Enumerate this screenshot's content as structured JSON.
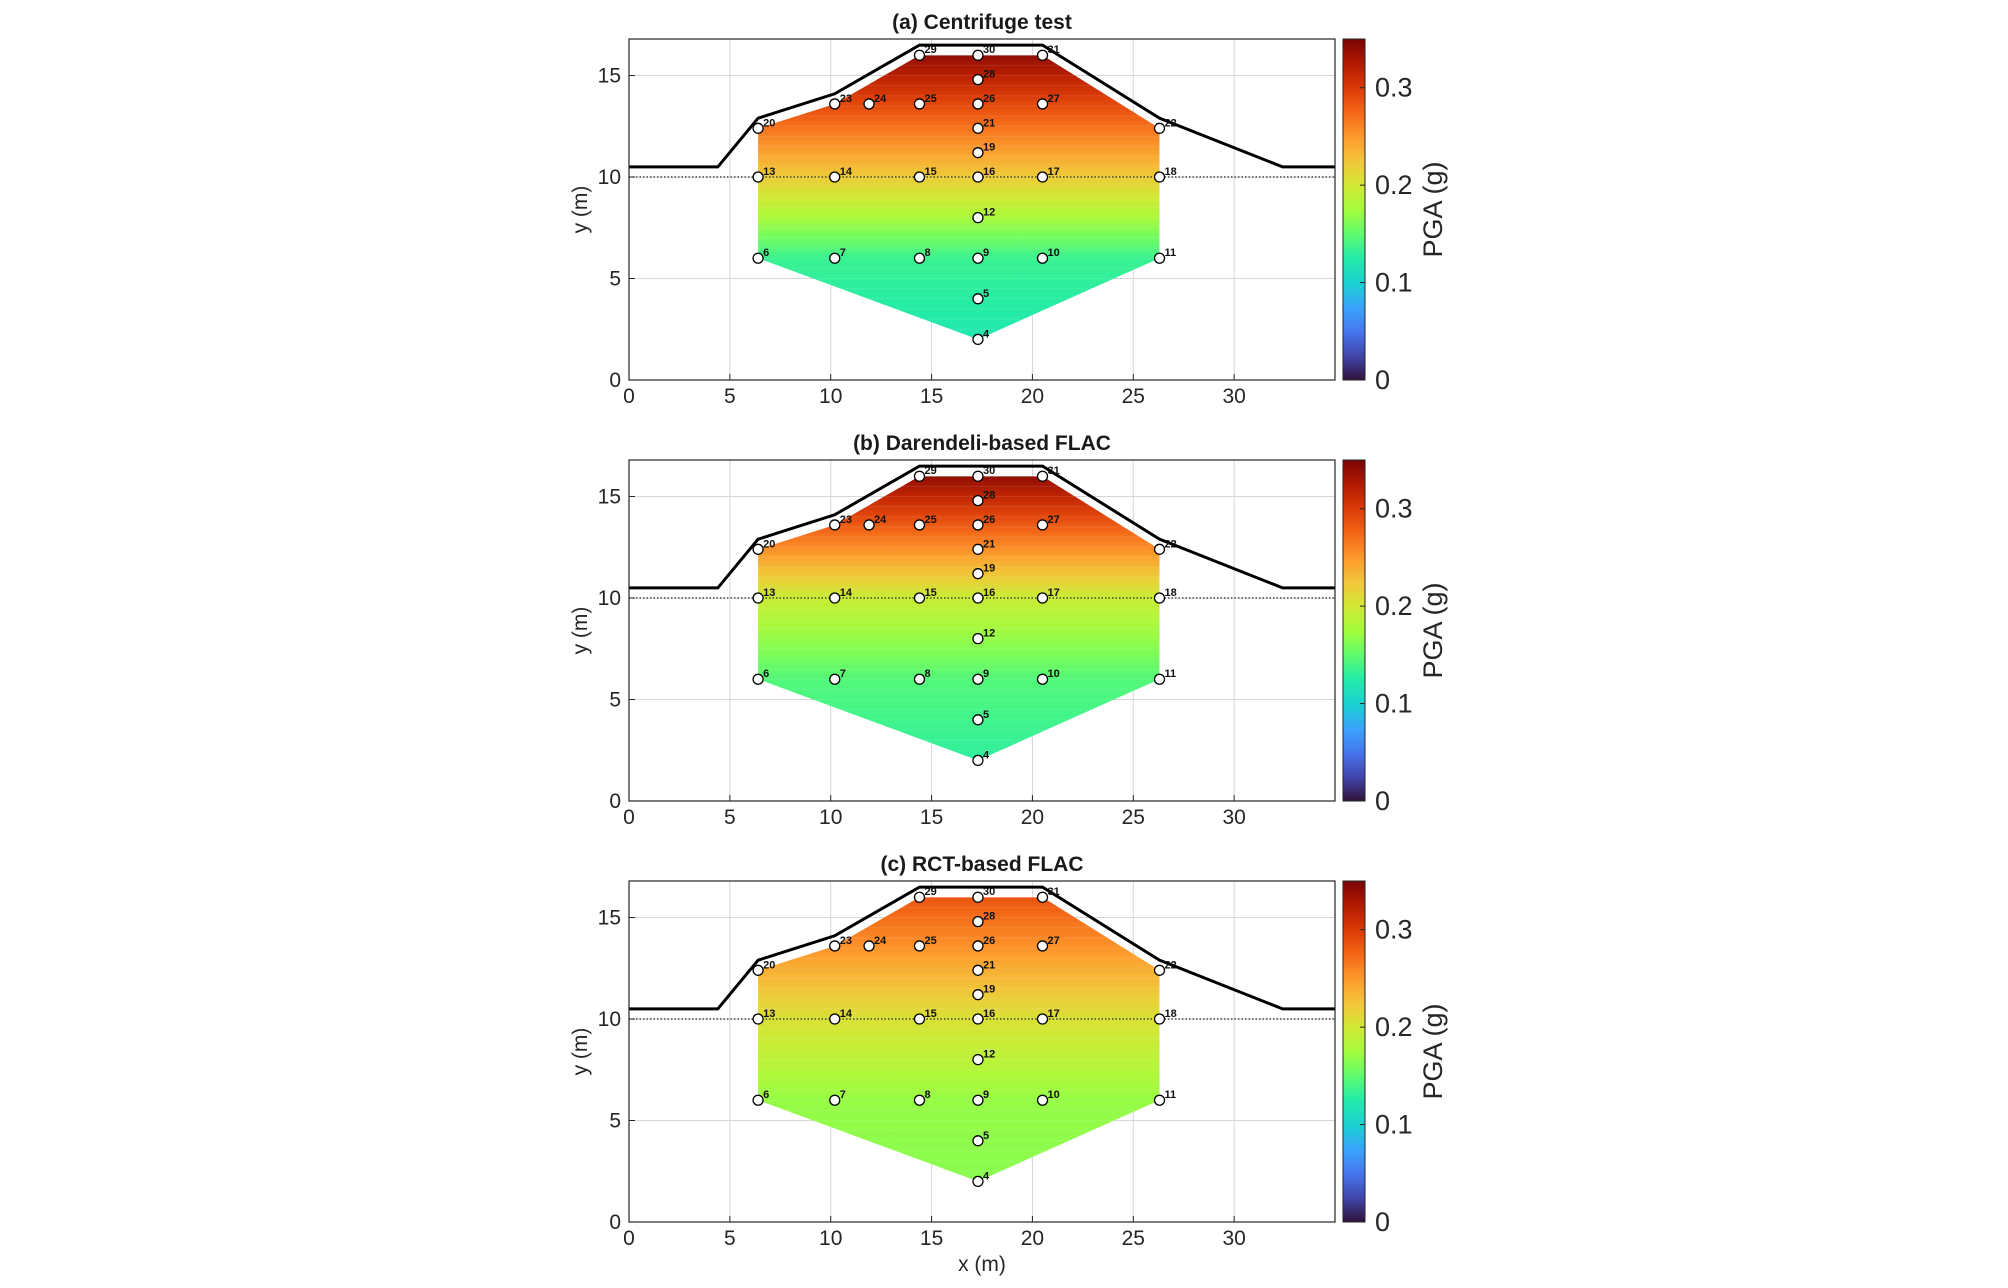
{
  "chart_data": [
    {
      "type": "heatmap",
      "title": "(a) Centrifuge test",
      "xlabel": "",
      "ylabel": "y (m)",
      "xlim": [
        0,
        35
      ],
      "ylim": [
        0,
        16.8
      ],
      "x_ticks": [
        0,
        5,
        10,
        15,
        20,
        25,
        30
      ],
      "y_ticks": [
        0,
        5,
        10,
        15
      ],
      "grid": true,
      "colorbar": {
        "label": "PGA (g)",
        "ticks": [
          0,
          0.1,
          0.2,
          0.3
        ],
        "range": [
          0,
          0.35
        ],
        "colormap": "turbo"
      },
      "pga_field": {
        "top_value": 0.34,
        "water_table_value": 0.22,
        "bottom_value": 0.135,
        "base_value": 0.12
      },
      "water_table_y": 10,
      "sensors": [
        {
          "id": "4",
          "x": 17.3,
          "y": 2.0
        },
        {
          "id": "5",
          "x": 17.3,
          "y": 4.0
        },
        {
          "id": "6",
          "x": 6.4,
          "y": 6.0
        },
        {
          "id": "7",
          "x": 10.2,
          "y": 6.0
        },
        {
          "id": "8",
          "x": 14.4,
          "y": 6.0
        },
        {
          "id": "9",
          "x": 17.3,
          "y": 6.0
        },
        {
          "id": "10",
          "x": 20.5,
          "y": 6.0
        },
        {
          "id": "11",
          "x": 26.3,
          "y": 6.0
        },
        {
          "id": "12",
          "x": 17.3,
          "y": 8.0
        },
        {
          "id": "13",
          "x": 6.4,
          "y": 10.0
        },
        {
          "id": "14",
          "x": 10.2,
          "y": 10.0
        },
        {
          "id": "15",
          "x": 14.4,
          "y": 10.0
        },
        {
          "id": "16",
          "x": 17.3,
          "y": 10.0
        },
        {
          "id": "17",
          "x": 20.5,
          "y": 10.0
        },
        {
          "id": "18",
          "x": 26.3,
          "y": 10.0
        },
        {
          "id": "19",
          "x": 17.3,
          "y": 11.2
        },
        {
          "id": "20",
          "x": 6.4,
          "y": 12.4
        },
        {
          "id": "21",
          "x": 17.3,
          "y": 12.4
        },
        {
          "id": "22",
          "x": 26.3,
          "y": 12.4
        },
        {
          "id": "23",
          "x": 10.2,
          "y": 13.6
        },
        {
          "id": "24",
          "x": 11.9,
          "y": 13.6
        },
        {
          "id": "25",
          "x": 14.4,
          "y": 13.6
        },
        {
          "id": "26",
          "x": 17.3,
          "y": 13.6
        },
        {
          "id": "27",
          "x": 20.5,
          "y": 13.6
        },
        {
          "id": "28",
          "x": 17.3,
          "y": 14.8
        },
        {
          "id": "29",
          "x": 14.4,
          "y": 16.0
        },
        {
          "id": "30",
          "x": 17.3,
          "y": 16.0
        },
        {
          "id": "31",
          "x": 20.5,
          "y": 16.0
        }
      ]
    },
    {
      "type": "heatmap",
      "title": "(b) Darendeli-based FLAC",
      "xlabel": "",
      "ylabel": "y (m)",
      "xlim": [
        0,
        35
      ],
      "ylim": [
        0,
        16.8
      ],
      "x_ticks": [
        0,
        5,
        10,
        15,
        20,
        25,
        30
      ],
      "y_ticks": [
        0,
        5,
        10,
        15
      ],
      "grid": true,
      "colorbar": {
        "label": "PGA (g)",
        "ticks": [
          0,
          0.1,
          0.2,
          0.3
        ],
        "range": [
          0,
          0.35
        ],
        "colormap": "turbo"
      },
      "pga_field": {
        "top_value": 0.34,
        "water_table_value": 0.195,
        "bottom_value": 0.145,
        "base_value": 0.13
      },
      "water_table_y": 10,
      "sensors": [
        {
          "id": "4",
          "x": 17.3,
          "y": 2.0
        },
        {
          "id": "5",
          "x": 17.3,
          "y": 4.0
        },
        {
          "id": "6",
          "x": 6.4,
          "y": 6.0
        },
        {
          "id": "7",
          "x": 10.2,
          "y": 6.0
        },
        {
          "id": "8",
          "x": 14.4,
          "y": 6.0
        },
        {
          "id": "9",
          "x": 17.3,
          "y": 6.0
        },
        {
          "id": "10",
          "x": 20.5,
          "y": 6.0
        },
        {
          "id": "11",
          "x": 26.3,
          "y": 6.0
        },
        {
          "id": "12",
          "x": 17.3,
          "y": 8.0
        },
        {
          "id": "13",
          "x": 6.4,
          "y": 10.0
        },
        {
          "id": "14",
          "x": 10.2,
          "y": 10.0
        },
        {
          "id": "15",
          "x": 14.4,
          "y": 10.0
        },
        {
          "id": "16",
          "x": 17.3,
          "y": 10.0
        },
        {
          "id": "17",
          "x": 20.5,
          "y": 10.0
        },
        {
          "id": "18",
          "x": 26.3,
          "y": 10.0
        },
        {
          "id": "19",
          "x": 17.3,
          "y": 11.2
        },
        {
          "id": "20",
          "x": 6.4,
          "y": 12.4
        },
        {
          "id": "21",
          "x": 17.3,
          "y": 12.4
        },
        {
          "id": "22",
          "x": 26.3,
          "y": 12.4
        },
        {
          "id": "23",
          "x": 10.2,
          "y": 13.6
        },
        {
          "id": "24",
          "x": 11.9,
          "y": 13.6
        },
        {
          "id": "25",
          "x": 14.4,
          "y": 13.6
        },
        {
          "id": "26",
          "x": 17.3,
          "y": 13.6
        },
        {
          "id": "27",
          "x": 20.5,
          "y": 13.6
        },
        {
          "id": "28",
          "x": 17.3,
          "y": 14.8
        },
        {
          "id": "29",
          "x": 14.4,
          "y": 16.0
        },
        {
          "id": "30",
          "x": 17.3,
          "y": 16.0
        },
        {
          "id": "31",
          "x": 20.5,
          "y": 16.0
        }
      ]
    },
    {
      "type": "heatmap",
      "title": "(c) RCT-based FLAC",
      "xlabel": "x (m)",
      "ylabel": "y (m)",
      "xlim": [
        0,
        35
      ],
      "ylim": [
        0,
        16.8
      ],
      "x_ticks": [
        0,
        5,
        10,
        15,
        20,
        25,
        30
      ],
      "y_ticks": [
        0,
        5,
        10,
        15
      ],
      "grid": true,
      "colorbar": {
        "label": "PGA (g)",
        "ticks": [
          0,
          0.1,
          0.2,
          0.3
        ],
        "range": [
          0,
          0.35
        ],
        "colormap": "turbo"
      },
      "pga_field": {
        "top_value": 0.285,
        "water_table_value": 0.205,
        "bottom_value": 0.17,
        "base_value": 0.165
      },
      "water_table_y": 10,
      "sensors": [
        {
          "id": "4",
          "x": 17.3,
          "y": 2.0
        },
        {
          "id": "5",
          "x": 17.3,
          "y": 4.0
        },
        {
          "id": "6",
          "x": 6.4,
          "y": 6.0
        },
        {
          "id": "7",
          "x": 10.2,
          "y": 6.0
        },
        {
          "id": "8",
          "x": 14.4,
          "y": 6.0
        },
        {
          "id": "9",
          "x": 17.3,
          "y": 6.0
        },
        {
          "id": "10",
          "x": 20.5,
          "y": 6.0
        },
        {
          "id": "11",
          "x": 26.3,
          "y": 6.0
        },
        {
          "id": "12",
          "x": 17.3,
          "y": 8.0
        },
        {
          "id": "13",
          "x": 6.4,
          "y": 10.0
        },
        {
          "id": "14",
          "x": 10.2,
          "y": 10.0
        },
        {
          "id": "15",
          "x": 14.4,
          "y": 10.0
        },
        {
          "id": "16",
          "x": 17.3,
          "y": 10.0
        },
        {
          "id": "17",
          "x": 20.5,
          "y": 10.0
        },
        {
          "id": "18",
          "x": 26.3,
          "y": 10.0
        },
        {
          "id": "19",
          "x": 17.3,
          "y": 11.2
        },
        {
          "id": "20",
          "x": 6.4,
          "y": 12.4
        },
        {
          "id": "21",
          "x": 17.3,
          "y": 12.4
        },
        {
          "id": "22",
          "x": 26.3,
          "y": 12.4
        },
        {
          "id": "23",
          "x": 10.2,
          "y": 13.6
        },
        {
          "id": "24",
          "x": 11.9,
          "y": 13.6
        },
        {
          "id": "25",
          "x": 14.4,
          "y": 13.6
        },
        {
          "id": "26",
          "x": 17.3,
          "y": 13.6
        },
        {
          "id": "27",
          "x": 20.5,
          "y": 13.6
        },
        {
          "id": "28",
          "x": 17.3,
          "y": 14.8
        },
        {
          "id": "29",
          "x": 14.4,
          "y": 16.0
        },
        {
          "id": "30",
          "x": 17.3,
          "y": 16.0
        },
        {
          "id": "31",
          "x": 20.5,
          "y": 16.0
        }
      ]
    }
  ],
  "dam_profile": {
    "x": [
      0,
      4.4,
      6.4,
      10.2,
      14.4,
      20.5,
      26.3,
      32.4,
      35
    ],
    "y": [
      10.5,
      10.5,
      12.9,
      14.1,
      16.5,
      16.5,
      12.9,
      10.5,
      10.5
    ]
  },
  "contour_region": {
    "x": [
      6.4,
      10.2,
      14.4,
      20.5,
      26.3,
      26.3,
      17.3,
      6.4
    ],
    "y": [
      12.4,
      13.6,
      16.0,
      16.0,
      12.4,
      6.0,
      2.0,
      6.0
    ]
  }
}
